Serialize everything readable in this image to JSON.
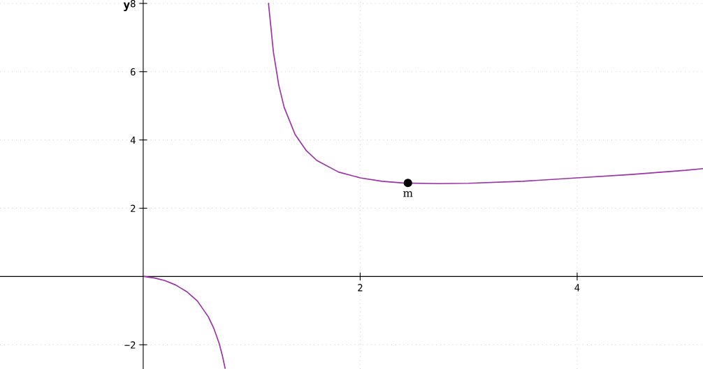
{
  "chart_data": {
    "type": "line",
    "ylabel": "y",
    "xlim": [
      -1.32,
      5.16
    ],
    "ylim": [
      -2.71,
      8.1
    ],
    "xticks": [
      2,
      4
    ],
    "yticks": [
      -2,
      2,
      4,
      6,
      8
    ],
    "grid": true,
    "marker": "none",
    "line_style": "solid",
    "series": [
      {
        "color": "#9b30a8",
        "x": [
          0.01,
          0.05,
          0.1,
          0.2,
          0.3,
          0.4,
          0.5,
          0.6,
          0.65,
          0.7,
          0.73,
          0.755,
          1.0,
          1.155,
          1.2,
          1.25,
          1.3,
          1.4,
          1.5,
          1.6,
          1.8,
          2.0,
          2.2,
          2.4,
          2.718,
          3.0,
          3.5,
          4.0,
          4.5,
          5.0,
          5.16
        ],
        "values": [
          0,
          -0.02,
          -0.04,
          -0.12,
          -0.25,
          -0.44,
          -0.72,
          -1.18,
          -1.51,
          -1.96,
          -2.32,
          -2.69,
          null,
          8.0,
          6.58,
          5.6,
          4.95,
          4.16,
          3.7,
          3.4,
          3.06,
          2.89,
          2.79,
          2.74,
          2.72,
          2.73,
          2.79,
          2.89,
          2.99,
          3.11,
          3.16
        ]
      },
      {
        "type": "scatter",
        "color": "#000000",
        "marker": "circle",
        "x": [
          2.44
        ],
        "values": [
          2.74
        ]
      }
    ],
    "annotations": [
      {
        "text": "m",
        "x": 2.44,
        "y": 2.74
      }
    ]
  }
}
